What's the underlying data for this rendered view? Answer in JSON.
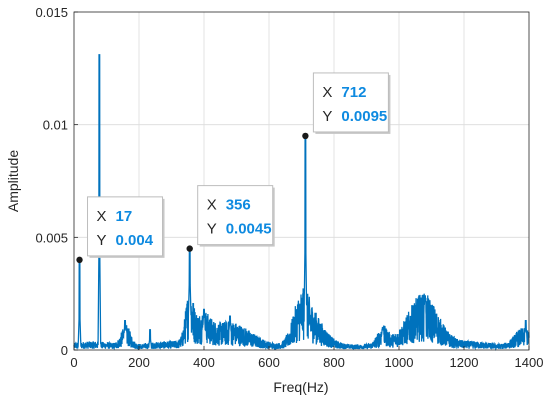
{
  "chart_data": {
    "type": "line",
    "xlabel": "Freq(Hz)",
    "ylabel": "Amplitude",
    "xlim": [
      0,
      1400
    ],
    "ylim": [
      0,
      0.015
    ],
    "grid": true,
    "x_ticks": [
      0,
      200,
      400,
      600,
      800,
      1000,
      1200,
      1400
    ],
    "x_tick_labels": [
      "0",
      "200",
      "400",
      "600",
      "800",
      "1000",
      "1200",
      "1400"
    ],
    "y_ticks": [
      0,
      0.005,
      0.01,
      0.015
    ],
    "y_tick_labels": [
      "0",
      "0.005",
      "0.01",
      "0.015"
    ],
    "line_color": "#0072bd",
    "label_color": "#0e8ae0",
    "peaks": [
      {
        "x": 17,
        "y": 0.004
      },
      {
        "x": 78,
        "y": 0.0131
      },
      {
        "x": 157,
        "y": 0.0013
      },
      {
        "x": 234,
        "y": 0.0009
      },
      {
        "x": 356,
        "y": 0.0045
      },
      {
        "x": 400,
        "y": 0.0018
      },
      {
        "x": 480,
        "y": 0.0015
      },
      {
        "x": 712,
        "y": 0.0095
      },
      {
        "x": 950,
        "y": 0.001
      },
      {
        "x": 1080,
        "y": 0.0024
      },
      {
        "x": 1390,
        "y": 0.0013
      }
    ],
    "datatips": [
      {
        "x_key": "X",
        "x_value": "17",
        "y_key": "Y",
        "y_value": "0.004",
        "x": 17,
        "y": 0.004
      },
      {
        "x_key": "X",
        "x_value": "356",
        "y_key": "Y",
        "y_value": "0.0045",
        "x": 356,
        "y": 0.0045
      },
      {
        "x_key": "X",
        "x_value": "712",
        "y_key": "Y",
        "y_value": "0.0095",
        "x": 712,
        "y": 0.0095
      }
    ]
  }
}
